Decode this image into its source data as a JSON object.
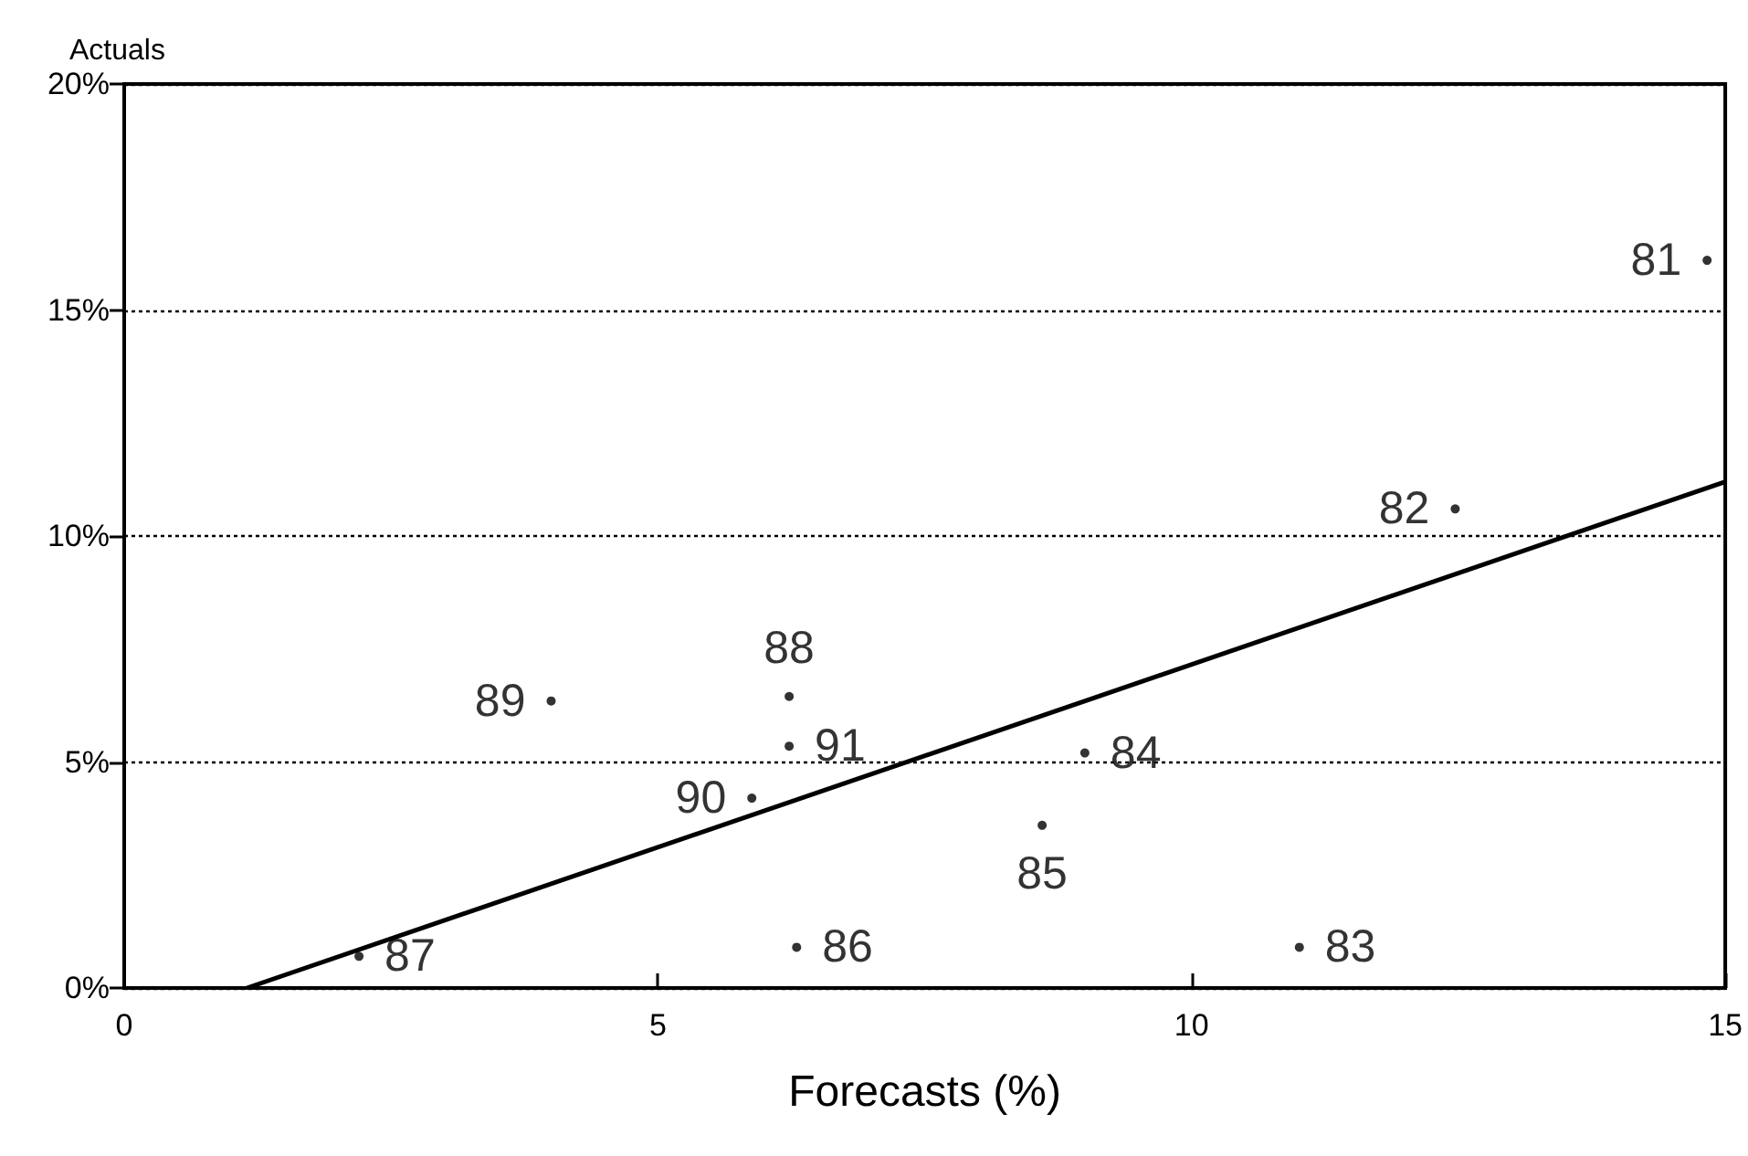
{
  "chart_data": {
    "type": "scatter",
    "xlabel": "Forecasts (%)",
    "ylabel": "Actuals",
    "xlim": [
      0,
      15
    ],
    "xticks": [
      0,
      5,
      10,
      15
    ],
    "ylim": [
      0,
      20
    ],
    "yticks": [
      {
        "value": 0,
        "label": "0%"
      },
      {
        "value": 5,
        "label": "5%"
      },
      {
        "value": 10,
        "label": "10%"
      },
      {
        "value": 15,
        "label": "15%"
      },
      {
        "value": 20,
        "label": "20%"
      }
    ],
    "grid": "y",
    "series": [
      {
        "color": "#000000",
        "marker": "circle",
        "x": [
          14.83,
          12.47,
          11.01,
          9.0,
          8.6,
          6.3,
          2.2,
          6.23,
          4.0,
          5.88,
          6.23
        ],
        "values": [
          16.1,
          10.6,
          0.9,
          5.2,
          3.6,
          0.9,
          0.7,
          6.45,
          6.35,
          4.2,
          5.35
        ]
      },
      {
        "type": "line",
        "color": "#000000",
        "marker": "none",
        "x": [
          1.15,
          15
        ],
        "values": [
          0,
          11.2
        ]
      }
    ],
    "annotations": [
      {
        "text": "81",
        "x": 14.83,
        "y": 16.1
      },
      {
        "text": "82",
        "x": 12.47,
        "y": 10.6
      },
      {
        "text": "83",
        "x": 11.01,
        "y": 0.9
      },
      {
        "text": "84",
        "x": 9.0,
        "y": 5.2
      },
      {
        "text": "85",
        "x": 8.6,
        "y": 3.6
      },
      {
        "text": "86",
        "x": 6.3,
        "y": 0.9
      },
      {
        "text": "87",
        "x": 2.2,
        "y": 0.7
      },
      {
        "text": "88",
        "x": 6.23,
        "y": 6.45
      },
      {
        "text": "89",
        "x": 4.0,
        "y": 6.35
      },
      {
        "text": "90",
        "x": 5.88,
        "y": 4.2
      },
      {
        "text": "91",
        "x": 6.23,
        "y": 5.35
      }
    ]
  }
}
